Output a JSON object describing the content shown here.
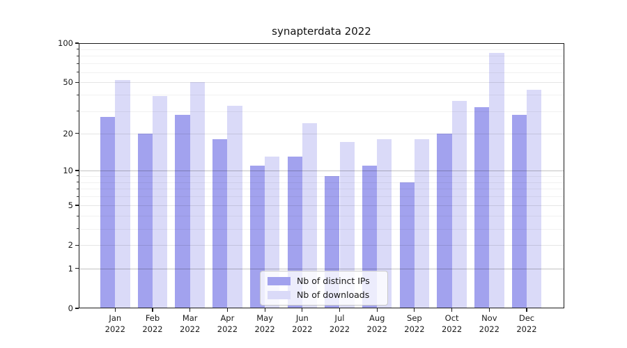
{
  "chart_data": {
    "type": "bar",
    "title": "synapterdata 2022",
    "categories": [
      "Jan",
      "Feb",
      "Mar",
      "Apr",
      "May",
      "Jun",
      "Jul",
      "Aug",
      "Sep",
      "Oct",
      "Nov",
      "Dec"
    ],
    "category_year": "2022",
    "series": [
      {
        "name": "Nb of distinct IPs",
        "key": "distinct-ips",
        "color": "#a2a2ee",
        "values": [
          27,
          20,
          28,
          18,
          11,
          13,
          9,
          11,
          8,
          20,
          32,
          28
        ]
      },
      {
        "name": "Nb of downloads",
        "key": "downloads",
        "color": "#dadaf8",
        "values": [
          52,
          39,
          50,
          33,
          13,
          24,
          17,
          18,
          18,
          36,
          84,
          44
        ]
      }
    ],
    "xlabel": "",
    "ylabel": "",
    "yscale": "log1p",
    "ylim": [
      0,
      100
    ],
    "yticks_labeled": [
      0,
      1,
      2,
      5,
      10,
      20,
      50,
      100
    ],
    "yticks_decade": [
      1,
      10,
      100
    ],
    "yticks_minor": [
      3,
      4,
      6,
      7,
      8,
      9,
      30,
      40,
      60,
      70,
      80,
      90
    ],
    "grid": true,
    "legend_position": "lower center"
  }
}
